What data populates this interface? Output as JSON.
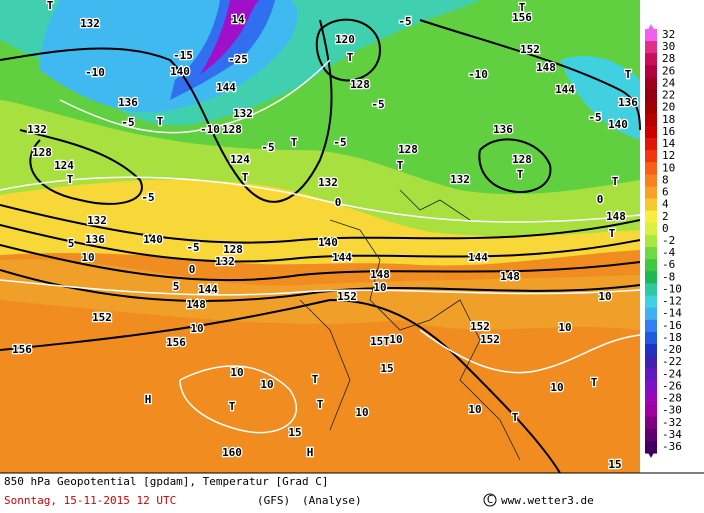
{
  "colorbar": {
    "levels": [
      32,
      30,
      28,
      26,
      24,
      22,
      20,
      18,
      16,
      14,
      12,
      10,
      8,
      6,
      4,
      2,
      0,
      -2,
      -4,
      -6,
      -8,
      -10,
      -12,
      -14,
      -16,
      -18,
      -20,
      -22,
      -24,
      -26,
      -28,
      -30,
      -32,
      -34,
      -36
    ],
    "colors": [
      "#f060f0",
      "#e0308a",
      "#c8105a",
      "#b00040",
      "#a00020",
      "#900010",
      "#a00000",
      "#b80000",
      "#d00000",
      "#e01808",
      "#f03810",
      "#f86018",
      "#f88020",
      "#f8a028",
      "#f8c830",
      "#f8f040",
      "#d8f040",
      "#a8e840",
      "#70d840",
      "#40c840",
      "#20b850",
      "#30c8a0",
      "#40d0e0",
      "#40b0f0",
      "#3080f0",
      "#2058e0",
      "#2030c0",
      "#4020b0",
      "#6018c0",
      "#8010c8",
      "#9808b8",
      "#a000a0",
      "#800080",
      "#600070",
      "#400060"
    ]
  },
  "map_labels": [
    "T",
    "132",
    "-10",
    "-15",
    "140",
    "-25",
    "14",
    "144",
    "136",
    "-5",
    "T",
    "-10",
    "128",
    "-5",
    "132",
    "T",
    "-5",
    "120",
    "T",
    "-5",
    "-10",
    "144",
    "T",
    "156",
    "152",
    "148",
    "T",
    "136",
    "-5",
    "140",
    "136",
    "128",
    "T",
    "132",
    "T",
    "128",
    "-5",
    "128",
    "124",
    "T",
    "128",
    "132",
    "-5",
    "124",
    "T",
    "132",
    "0",
    "132",
    "136",
    "140",
    "-5",
    "128",
    "132",
    "0",
    "5",
    "144",
    "148",
    "10",
    "5",
    "152",
    "156",
    "10",
    "156",
    "144",
    "140",
    "152",
    "148",
    "10",
    "144",
    "148",
    "10",
    "152",
    "152",
    "10",
    "15T",
    "10",
    "10",
    "10",
    "T",
    "H",
    "T",
    "T",
    "10",
    "15",
    "10",
    "T",
    "10",
    "T",
    "15",
    "H",
    "160",
    "15",
    "T",
    "T",
    "148",
    "0"
  ],
  "footer": {
    "line1": "850 hPa Geopotential [gpdam], Temperatur [Grad C]",
    "date": "Sonntag, 15-11-2015  12 UTC",
    "model": "(GFS)",
    "run": "(Analyse)",
    "credit": "www.wetter3.de"
  }
}
